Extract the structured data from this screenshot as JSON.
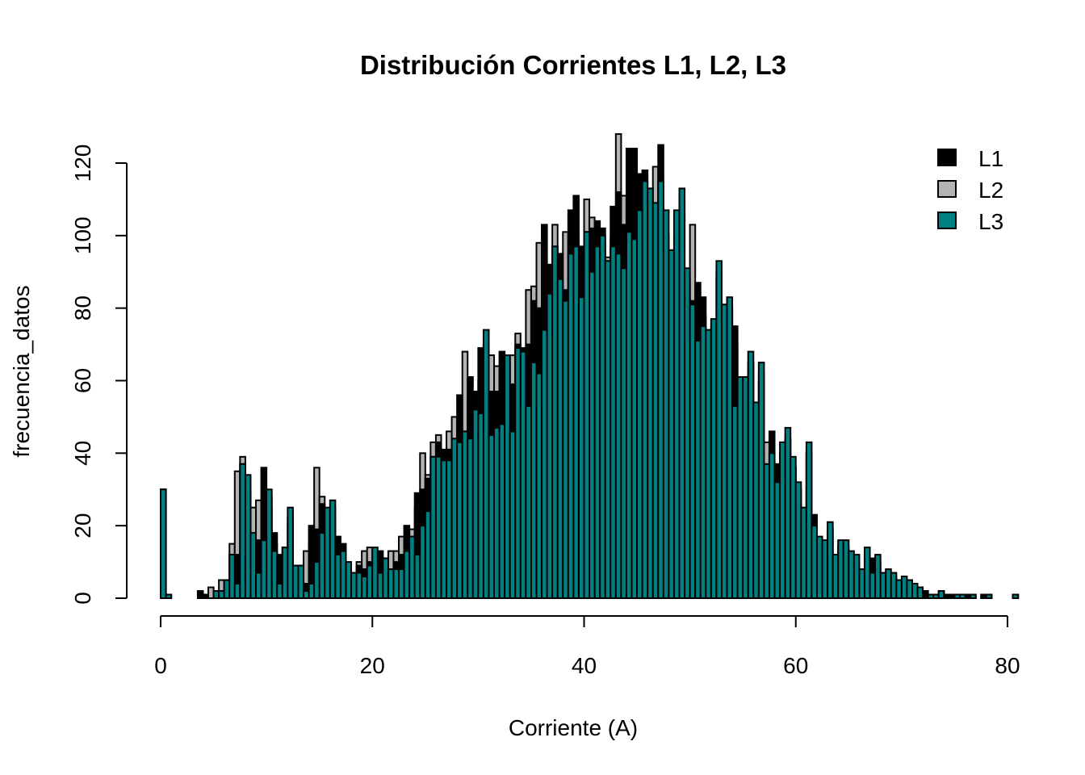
{
  "chart_data": {
    "type": "bar",
    "subtype": "overlaid-histogram",
    "title": "Distribución Corrientes L1, L2, L3",
    "xlabel": "Corriente (A)",
    "ylabel": "frecuencia_datos",
    "xlim": [
      0,
      81
    ],
    "ylim": [
      0,
      128
    ],
    "bin_start": 0,
    "bin_width": 0.5,
    "x_ticks": [
      0,
      20,
      40,
      60,
      80
    ],
    "x_tick_labels": [
      "0",
      "20",
      "40",
      "60",
      "80"
    ],
    "y_ticks": [
      0,
      20,
      40,
      60,
      80,
      100,
      120
    ],
    "y_tick_labels": [
      "0",
      "20",
      "40",
      "60",
      "80",
      "100",
      "120"
    ],
    "grid": false,
    "legend_position": "top-right",
    "draw_order": [
      "L2",
      "L1",
      "L3"
    ],
    "series": [
      {
        "name": "L1",
        "color": "#000000",
        "values": [
          30,
          1,
          0,
          0,
          0,
          0,
          0,
          2,
          1,
          0,
          2,
          2,
          4,
          12,
          12,
          37,
          30,
          18,
          16,
          36,
          28,
          18,
          12,
          14,
          22,
          9,
          9,
          4,
          20,
          19,
          26,
          23,
          25,
          17,
          15,
          9,
          6,
          9,
          8,
          10,
          13,
          13,
          11,
          8,
          10,
          12,
          20,
          16,
          29,
          30,
          33,
          39,
          43,
          41,
          41,
          44,
          56,
          46,
          61,
          57,
          69,
          70,
          57,
          57,
          68,
          65,
          59,
          70,
          69,
          70,
          82,
          80,
          103,
          92,
          97,
          95,
          85,
          107,
          111,
          97,
          101,
          102,
          104,
          102,
          93,
          108,
          112,
          103,
          124,
          124,
          117,
          118,
          113,
          109,
          125,
          100,
          95,
          100,
          110,
          88,
          82,
          87,
          83,
          70,
          75,
          90,
          78,
          80,
          75,
          58,
          58,
          65,
          50,
          62,
          35,
          46,
          37,
          40,
          44,
          36,
          30,
          22,
          40,
          23,
          15,
          14,
          19,
          10,
          14,
          14,
          11,
          10,
          7,
          12,
          11,
          10,
          6,
          7,
          6,
          4,
          5,
          4,
          3,
          2,
          2,
          1,
          1,
          2,
          1,
          1,
          1,
          1,
          1,
          1,
          0,
          1,
          1,
          0,
          0,
          0,
          0,
          1
        ]
      },
      {
        "name": "L2",
        "color": "#B3B3B3",
        "values": [
          30,
          1,
          0,
          0,
          0,
          0,
          0,
          0,
          0,
          3,
          2,
          5,
          4,
          15,
          35,
          39,
          25,
          25,
          27,
          20,
          25,
          15,
          10,
          12,
          20,
          9,
          9,
          13,
          15,
          36,
          28,
          20,
          22,
          14,
          13,
          8,
          5,
          10,
          13,
          14,
          12,
          10,
          9,
          13,
          13,
          17,
          15,
          19,
          25,
          40,
          34,
          43,
          45,
          38,
          46,
          50,
          50,
          68,
          55,
          52,
          60,
          70,
          67,
          64,
          60,
          64,
          67,
          73,
          65,
          85,
          86,
          98,
          90,
          85,
          103,
          90,
          101,
          100,
          100,
          90,
          110,
          105,
          100,
          98,
          94,
          100,
          128,
          111,
          110,
          110,
          110,
          110,
          108,
          119,
          110,
          98,
          90,
          100,
          105,
          85,
          103,
          80,
          78,
          70,
          72,
          88,
          76,
          80,
          70,
          55,
          55,
          62,
          50,
          60,
          43,
          40,
          32,
          40,
          44,
          36,
          30,
          22,
          40,
          18,
          15,
          14,
          19,
          10,
          14,
          14,
          11,
          10,
          7,
          12,
          8,
          10,
          6,
          7,
          6,
          4,
          5,
          4,
          3,
          2,
          1,
          1,
          1,
          2,
          0,
          0,
          1,
          1,
          0,
          1,
          0,
          0,
          1,
          0,
          0,
          0,
          0,
          1
        ]
      },
      {
        "name": "L3",
        "color": "#008080",
        "values": [
          30,
          1,
          0,
          0,
          0,
          0,
          0,
          0,
          0,
          0,
          2,
          2,
          5,
          12,
          4,
          37,
          34,
          18,
          7,
          16,
          30,
          13,
          4,
          14,
          25,
          9,
          9,
          2,
          4,
          10,
          18,
          25,
          27,
          12,
          13,
          10,
          7,
          7,
          6,
          9,
          14,
          7,
          11,
          8,
          8,
          8,
          13,
          17,
          12,
          20,
          24,
          39,
          39,
          38,
          38,
          44,
          43,
          46,
          44,
          52,
          51,
          74,
          45,
          47,
          48,
          67,
          46,
          69,
          68,
          53,
          65,
          62,
          74,
          84,
          97,
          88,
          82,
          95,
          97,
          83,
          101,
          90,
          97,
          100,
          93,
          97,
          95,
          91,
          101,
          99,
          107,
          115,
          113,
          109,
          115,
          107,
          96,
          107,
          113,
          91,
          81,
          71,
          75,
          74,
          77,
          93,
          81,
          83,
          53,
          61,
          61,
          68,
          54,
          65,
          37,
          40,
          32,
          43,
          47,
          39,
          32,
          25,
          43,
          20,
          17,
          16,
          21,
          12,
          16,
          16,
          13,
          12,
          8,
          14,
          7,
          12,
          7,
          8,
          7,
          5,
          6,
          5,
          4,
          3,
          0,
          1,
          1,
          2,
          0,
          0,
          1,
          1,
          0,
          1,
          0,
          0,
          1,
          0,
          0,
          0,
          0,
          1
        ]
      }
    ]
  }
}
